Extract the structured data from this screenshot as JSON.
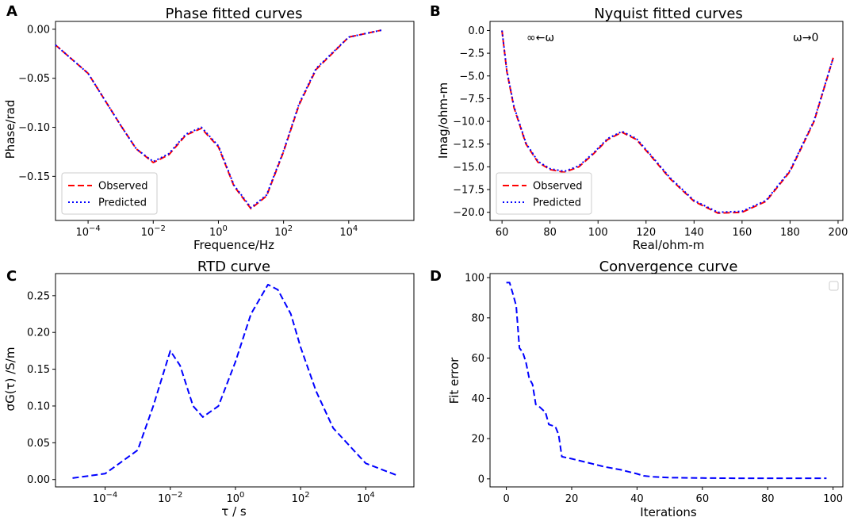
{
  "chart_data": [
    {
      "panel": "A",
      "type": "line",
      "title": "Phase fitted curves",
      "xlabel": "Frequence/Hz",
      "ylabel": "Phase/rad",
      "xscale": "log",
      "xlim": [
        1e-05,
        1000000
      ],
      "ylim": [
        -0.195,
        0.008
      ],
      "xticks": [
        {
          "value": 0.0001,
          "base": "10",
          "exp": "−4"
        },
        {
          "value": 0.01,
          "base": "10",
          "exp": "−2"
        },
        {
          "value": 1,
          "base": "10",
          "exp": "0"
        },
        {
          "value": 100,
          "base": "10",
          "exp": "2"
        },
        {
          "value": 10000,
          "base": "10",
          "exp": "4"
        }
      ],
      "yticks": [
        0.0,
        -0.05,
        -0.1,
        -0.15
      ],
      "ytick_labels": [
        "0.00",
        "−0.05",
        "−0.10",
        "−0.15"
      ],
      "legend_position": "bottom-left",
      "legend": [
        "Observed",
        "Predicted"
      ],
      "series": [
        {
          "name": "Observed",
          "color": "#ff0000",
          "style": "dashed",
          "x": [
            1e-05,
            0.0001,
            0.001,
            0.003,
            0.01,
            0.03,
            0.1,
            0.3,
            1,
            3,
            10,
            30,
            100,
            300,
            1000,
            10000,
            100000
          ],
          "y": [
            -0.016,
            -0.045,
            -0.098,
            -0.122,
            -0.136,
            -0.128,
            -0.108,
            -0.101,
            -0.12,
            -0.16,
            -0.183,
            -0.17,
            -0.125,
            -0.077,
            -0.041,
            -0.008,
            -0.001
          ]
        },
        {
          "name": "Predicted",
          "color": "#0000ff",
          "style": "dotted",
          "x": [
            1e-05,
            0.0001,
            0.001,
            0.003,
            0.01,
            0.03,
            0.1,
            0.3,
            1,
            3,
            10,
            30,
            100,
            300,
            1000,
            10000,
            100000
          ],
          "y": [
            -0.016,
            -0.045,
            -0.098,
            -0.122,
            -0.135,
            -0.127,
            -0.107,
            -0.1,
            -0.119,
            -0.159,
            -0.182,
            -0.169,
            -0.124,
            -0.076,
            -0.04,
            -0.008,
            -0.001
          ]
        }
      ]
    },
    {
      "panel": "B",
      "type": "line",
      "title": "Nyquist fitted curves",
      "xlabel": "Real/ohm-m",
      "ylabel": "Imag/ohm-m",
      "xscale": "linear",
      "xlim": [
        55,
        202
      ],
      "ylim": [
        -20.9,
        1.0
      ],
      "xticks": [
        60,
        80,
        100,
        120,
        140,
        160,
        180,
        200
      ],
      "yticks": [
        0.0,
        -2.5,
        -5.0,
        -7.5,
        -10.0,
        -12.5,
        -15.0,
        -17.5,
        -20.0
      ],
      "ytick_labels": [
        "0.0",
        "−2.5",
        "−5.0",
        "−7.5",
        "−10.0",
        "−12.5",
        "−15.0",
        "−17.5",
        "−20.0"
      ],
      "annotations": [
        "∞←ω",
        "ω→0"
      ],
      "legend_position": "bottom-left",
      "legend": [
        "Observed",
        "Predicted"
      ],
      "series": [
        {
          "name": "Observed",
          "color": "#ff0000",
          "style": "dashed",
          "x": [
            60,
            62,
            65,
            70,
            75,
            80,
            86,
            92,
            98,
            104,
            110,
            116,
            122,
            130,
            140,
            150,
            160,
            170,
            180,
            190,
            198
          ],
          "y": [
            0,
            -4.5,
            -8.5,
            -12.5,
            -14.5,
            -15.3,
            -15.6,
            -15.0,
            -13.6,
            -12.0,
            -11.2,
            -12.0,
            -13.8,
            -16.3,
            -18.8,
            -20.1,
            -20.0,
            -18.8,
            -15.5,
            -10.0,
            -3.0
          ]
        },
        {
          "name": "Predicted",
          "color": "#0000ff",
          "style": "dotted",
          "x": [
            60,
            62,
            65,
            70,
            75,
            80,
            86,
            92,
            98,
            104,
            110,
            116,
            122,
            130,
            140,
            150,
            160,
            170,
            180,
            190,
            198
          ],
          "y": [
            0,
            -4.4,
            -8.4,
            -12.4,
            -14.4,
            -15.2,
            -15.5,
            -14.9,
            -13.5,
            -11.9,
            -11.1,
            -11.9,
            -13.7,
            -16.2,
            -18.7,
            -20.0,
            -19.9,
            -18.7,
            -15.4,
            -9.9,
            -3.0
          ]
        }
      ]
    },
    {
      "panel": "C",
      "type": "line",
      "title": "RTD curve",
      "xlabel": "τ / s",
      "ylabel": "σG(τ) /S/m",
      "xscale": "log",
      "xlim": [
        3e-06,
        300000
      ],
      "ylim": [
        -0.01,
        0.28
      ],
      "xticks": [
        {
          "value": 0.0001,
          "base": "10",
          "exp": "−4"
        },
        {
          "value": 0.01,
          "base": "10",
          "exp": "−2"
        },
        {
          "value": 1,
          "base": "10",
          "exp": "0"
        },
        {
          "value": 100,
          "base": "10",
          "exp": "2"
        },
        {
          "value": 10000,
          "base": "10",
          "exp": "4"
        }
      ],
      "yticks": [
        0.0,
        0.05,
        0.1,
        0.15,
        0.2,
        0.25
      ],
      "ytick_labels": [
        "0.00",
        "0.05",
        "0.10",
        "0.15",
        "0.20",
        "0.25"
      ],
      "series": [
        {
          "name": "RTD",
          "color": "#0000ff",
          "style": "dashed",
          "x": [
            1e-05,
            0.0001,
            0.001,
            0.003,
            0.01,
            0.02,
            0.05,
            0.1,
            0.3,
            1,
            3,
            10,
            20,
            50,
            100,
            300,
            1000,
            10000,
            100000
          ],
          "y": [
            0.002,
            0.008,
            0.04,
            0.1,
            0.175,
            0.155,
            0.1,
            0.085,
            0.1,
            0.16,
            0.225,
            0.265,
            0.258,
            0.225,
            0.18,
            0.12,
            0.07,
            0.022,
            0.005
          ]
        }
      ]
    },
    {
      "panel": "D",
      "type": "line",
      "title": "Convergence curve",
      "xlabel": "Iterations",
      "ylabel": "Fit error",
      "xscale": "linear",
      "xlim": [
        -5,
        103
      ],
      "ylim": [
        -4,
        102
      ],
      "xticks": [
        0,
        20,
        40,
        60,
        80,
        100
      ],
      "yticks": [
        0,
        20,
        40,
        60,
        80,
        100
      ],
      "ytick_labels": [
        "0",
        "20",
        "40",
        "60",
        "80",
        "100"
      ],
      "legend_position": "top-right",
      "legend": [],
      "series": [
        {
          "name": "Fit error",
          "color": "#0000ff",
          "style": "dashed",
          "x": [
            0,
            1,
            2,
            3,
            4,
            5,
            6,
            7,
            8,
            9,
            10,
            12,
            13,
            15,
            16,
            17,
            20,
            25,
            30,
            35,
            40,
            42,
            45,
            50,
            60,
            70,
            80,
            90,
            98
          ],
          "y": [
            97.5,
            97.5,
            92,
            86,
            65,
            63,
            58,
            50,
            47,
            37,
            36,
            33,
            27,
            26,
            22,
            11,
            10,
            8,
            6,
            4.5,
            2.5,
            1.5,
            1.0,
            0.6,
            0.4,
            0.3,
            0.3,
            0.3,
            0.3
          ]
        }
      ]
    }
  ]
}
